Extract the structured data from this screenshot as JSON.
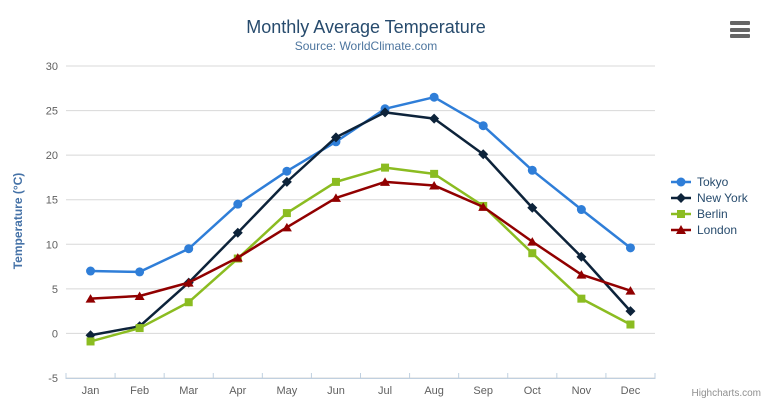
{
  "chart": {
    "title": "Monthly Average Temperature",
    "subtitle": "Source: WorldClimate.com",
    "credits": "Highcharts.com",
    "menu_icon": "hamburger"
  },
  "colors": {
    "title": "#274b6d",
    "subtitle": "#4d759e",
    "axis_label": "#606060",
    "y_axis_title": "#4572a7",
    "grid_line": "#d8d8d8",
    "x_axis_line": "#c0d0e0",
    "legend_text": "#274b6d",
    "credits_text": "#909090"
  },
  "chart_data": {
    "type": "line",
    "title": "Monthly Average Temperature",
    "subtitle": "Source: WorldClimate.com",
    "categories": [
      "Jan",
      "Feb",
      "Mar",
      "Apr",
      "May",
      "Jun",
      "Jul",
      "Aug",
      "Sep",
      "Oct",
      "Nov",
      "Dec"
    ],
    "xlabel": "",
    "ylabel": "Temperature (°C)",
    "ylim": [
      -5,
      30
    ],
    "yticks": [
      -5,
      0,
      5,
      10,
      15,
      20,
      25,
      30
    ],
    "grid": true,
    "legend_position": "right",
    "series": [
      {
        "name": "Tokyo",
        "color": "#2f7ed8",
        "marker": "circle",
        "values": [
          7.0,
          6.9,
          9.5,
          14.5,
          18.2,
          21.5,
          25.2,
          26.5,
          23.3,
          18.3,
          13.9,
          9.6
        ]
      },
      {
        "name": "New York",
        "color": "#0d233a",
        "marker": "diamond",
        "values": [
          -0.2,
          0.8,
          5.7,
          11.3,
          17.0,
          22.0,
          24.8,
          24.1,
          20.1,
          14.1,
          8.6,
          2.5
        ]
      },
      {
        "name": "Berlin",
        "color": "#8bbc21",
        "marker": "square",
        "values": [
          -0.9,
          0.6,
          3.5,
          8.4,
          13.5,
          17.0,
          18.6,
          17.9,
          14.3,
          9.0,
          3.9,
          1.0
        ]
      },
      {
        "name": "London",
        "color": "#910000",
        "marker": "triangle",
        "values": [
          3.9,
          4.2,
          5.7,
          8.5,
          11.9,
          15.2,
          17.0,
          16.6,
          14.2,
          10.3,
          6.6,
          4.8
        ]
      }
    ]
  }
}
